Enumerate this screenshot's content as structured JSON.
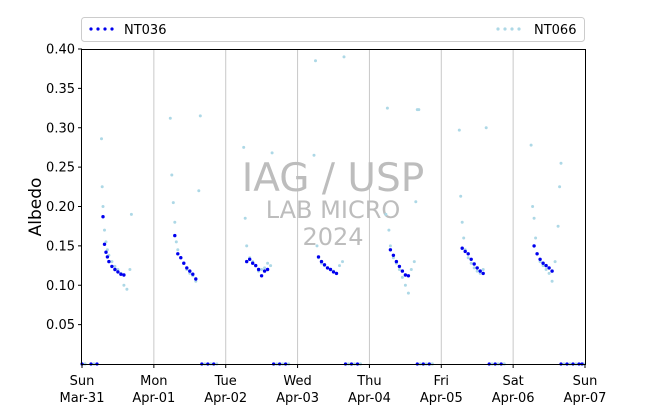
{
  "chart_data": {
    "type": "scatter",
    "ylabel": "Albedo",
    "xlabel": "",
    "ylim": [
      0.0,
      0.4
    ],
    "yticks": [
      "0.05",
      "0.10",
      "0.15",
      "0.20",
      "0.25",
      "0.30",
      "0.35",
      "0.40"
    ],
    "xlim": [
      "2024-03-31",
      "2024-04-07"
    ],
    "xticks": [
      {
        "day": "Sun",
        "date": "Mar-31"
      },
      {
        "day": "Mon",
        "date": "Apr-01"
      },
      {
        "day": "Tue",
        "date": "Apr-02"
      },
      {
        "day": "Wed",
        "date": "Apr-03"
      },
      {
        "day": "Thu",
        "date": "Apr-04"
      },
      {
        "day": "Fri",
        "date": "Apr-05"
      },
      {
        "day": "Sat",
        "date": "Apr-06"
      },
      {
        "day": "Sun",
        "date": "Apr-07"
      }
    ],
    "grid": "vertical",
    "legend_position": "top",
    "watermark": [
      "IAG / USP",
      "LAB MICRO",
      "2024"
    ],
    "series": [
      {
        "name": "NT036",
        "color": "#0000ee",
        "marker": "dot",
        "points": [
          [
            "2024-03-31T07:00",
            0.187
          ],
          [
            "2024-03-31T07:30",
            0.152
          ],
          [
            "2024-03-31T08:00",
            0.142
          ],
          [
            "2024-03-31T08:30",
            0.136
          ],
          [
            "2024-03-31T09:00",
            0.13
          ],
          [
            "2024-03-31T10:00",
            0.124
          ],
          [
            "2024-03-31T11:00",
            0.12
          ],
          [
            "2024-03-31T12:00",
            0.117
          ],
          [
            "2024-03-31T13:00",
            0.114
          ],
          [
            "2024-03-31T14:00",
            0.113
          ],
          [
            "2024-04-01T07:00",
            0.163
          ],
          [
            "2024-04-01T08:00",
            0.14
          ],
          [
            "2024-04-01T09:00",
            0.135
          ],
          [
            "2024-04-01T10:00",
            0.128
          ],
          [
            "2024-04-01T11:00",
            0.122
          ],
          [
            "2024-04-01T12:00",
            0.118
          ],
          [
            "2024-04-01T13:00",
            0.114
          ],
          [
            "2024-04-01T14:00",
            0.108
          ],
          [
            "2024-04-02T07:00",
            0.13
          ],
          [
            "2024-04-02T08:00",
            0.133
          ],
          [
            "2024-04-02T09:00",
            0.128
          ],
          [
            "2024-04-02T10:00",
            0.125
          ],
          [
            "2024-04-02T11:00",
            0.12
          ],
          [
            "2024-04-02T12:00",
            0.112
          ],
          [
            "2024-04-02T13:00",
            0.118
          ],
          [
            "2024-04-02T14:00",
            0.12
          ],
          [
            "2024-04-03T07:00",
            0.136
          ],
          [
            "2024-04-03T08:00",
            0.13
          ],
          [
            "2024-04-03T09:00",
            0.126
          ],
          [
            "2024-04-03T10:00",
            0.122
          ],
          [
            "2024-04-03T11:00",
            0.12
          ],
          [
            "2024-04-03T12:00",
            0.117
          ],
          [
            "2024-04-03T13:00",
            0.115
          ],
          [
            "2024-04-04T07:00",
            0.145
          ],
          [
            "2024-04-04T08:00",
            0.138
          ],
          [
            "2024-04-04T09:00",
            0.13
          ],
          [
            "2024-04-04T10:00",
            0.124
          ],
          [
            "2024-04-04T11:00",
            0.118
          ],
          [
            "2024-04-04T12:00",
            0.113
          ],
          [
            "2024-04-04T13:00",
            0.112
          ],
          [
            "2024-04-05T07:00",
            0.147
          ],
          [
            "2024-04-05T08:00",
            0.143
          ],
          [
            "2024-04-05T09:00",
            0.14
          ],
          [
            "2024-04-05T10:00",
            0.133
          ],
          [
            "2024-04-05T11:00",
            0.127
          ],
          [
            "2024-04-05T12:00",
            0.122
          ],
          [
            "2024-04-05T13:00",
            0.118
          ],
          [
            "2024-04-05T14:00",
            0.115
          ],
          [
            "2024-04-06T07:00",
            0.15
          ],
          [
            "2024-04-06T08:00",
            0.14
          ],
          [
            "2024-04-06T09:00",
            0.133
          ],
          [
            "2024-04-06T10:00",
            0.128
          ],
          [
            "2024-04-06T11:00",
            0.125
          ],
          [
            "2024-04-06T12:00",
            0.122
          ],
          [
            "2024-04-06T13:00",
            0.118
          ]
        ],
        "baseline": [
          [
            "2024-03-31T00:00",
            0.0
          ],
          [
            "2024-03-31T03:00",
            0.0
          ],
          [
            "2024-03-31T05:00",
            0.0
          ],
          [
            "2024-04-01T16:00",
            0.0
          ],
          [
            "2024-04-01T18:00",
            0.0
          ],
          [
            "2024-04-01T20:00",
            0.0
          ],
          [
            "2024-04-02T16:00",
            0.0
          ],
          [
            "2024-04-02T18:00",
            0.0
          ],
          [
            "2024-04-02T20:00",
            0.0
          ],
          [
            "2024-04-03T16:00",
            0.0
          ],
          [
            "2024-04-03T18:00",
            0.0
          ],
          [
            "2024-04-03T20:00",
            0.0
          ],
          [
            "2024-04-04T16:00",
            0.0
          ],
          [
            "2024-04-04T18:00",
            0.0
          ],
          [
            "2024-04-04T20:00",
            0.0
          ],
          [
            "2024-04-05T16:00",
            0.0
          ],
          [
            "2024-04-05T18:00",
            0.0
          ],
          [
            "2024-04-05T20:00",
            0.0
          ],
          [
            "2024-04-06T16:00",
            0.0
          ],
          [
            "2024-04-06T18:00",
            0.0
          ],
          [
            "2024-04-06T20:00",
            0.0
          ],
          [
            "2024-04-06T22:00",
            0.0
          ],
          [
            "2024-04-06T23:00",
            0.0
          ]
        ]
      },
      {
        "name": "NT066",
        "color": "#add8e6",
        "marker": "dot",
        "points": [
          [
            "2024-03-31T06:30",
            0.286
          ],
          [
            "2024-03-31T06:45",
            0.225
          ],
          [
            "2024-03-31T07:00",
            0.2
          ],
          [
            "2024-03-31T07:30",
            0.17
          ],
          [
            "2024-03-31T08:00",
            0.155
          ],
          [
            "2024-03-31T08:30",
            0.145
          ],
          [
            "2024-03-31T09:00",
            0.138
          ],
          [
            "2024-03-31T10:00",
            0.13
          ],
          [
            "2024-03-31T11:00",
            0.124
          ],
          [
            "2024-03-31T12:00",
            0.12
          ],
          [
            "2024-03-31T13:00",
            0.115
          ],
          [
            "2024-03-31T14:00",
            0.1
          ],
          [
            "2024-03-31T15:00",
            0.095
          ],
          [
            "2024-03-31T16:00",
            0.12
          ],
          [
            "2024-03-31T16:30",
            0.19
          ],
          [
            "2024-04-01T05:30",
            0.312
          ],
          [
            "2024-04-01T06:00",
            0.24
          ],
          [
            "2024-04-01T06:30",
            0.205
          ],
          [
            "2024-04-01T07:00",
            0.18
          ],
          [
            "2024-04-01T07:30",
            0.155
          ],
          [
            "2024-04-01T08:00",
            0.145
          ],
          [
            "2024-04-01T09:00",
            0.135
          ],
          [
            "2024-04-01T10:00",
            0.128
          ],
          [
            "2024-04-01T11:00",
            0.12
          ],
          [
            "2024-04-01T12:00",
            0.115
          ],
          [
            "2024-04-01T13:00",
            0.112
          ],
          [
            "2024-04-01T14:00",
            0.105
          ],
          [
            "2024-04-01T15:00",
            0.22
          ],
          [
            "2024-04-01T15:30",
            0.315
          ],
          [
            "2024-04-02T06:00",
            0.275
          ],
          [
            "2024-04-02T06:30",
            0.185
          ],
          [
            "2024-04-02T07:00",
            0.15
          ],
          [
            "2024-04-02T08:00",
            0.135
          ],
          [
            "2024-04-02T09:00",
            0.13
          ],
          [
            "2024-04-02T10:00",
            0.125
          ],
          [
            "2024-04-02T11:00",
            0.118
          ],
          [
            "2024-04-02T12:00",
            0.12
          ],
          [
            "2024-04-02T13:00",
            0.122
          ],
          [
            "2024-04-02T14:00",
            0.128
          ],
          [
            "2024-04-02T15:00",
            0.125
          ],
          [
            "2024-04-02T15:30",
            0.268
          ],
          [
            "2024-04-03T05:30",
            0.265
          ],
          [
            "2024-04-03T06:00",
            0.385
          ],
          [
            "2024-04-03T06:30",
            0.15
          ],
          [
            "2024-04-03T07:00",
            0.135
          ],
          [
            "2024-04-03T08:00",
            0.128
          ],
          [
            "2024-04-03T09:00",
            0.125
          ],
          [
            "2024-04-03T10:00",
            0.122
          ],
          [
            "2024-04-03T11:00",
            0.12
          ],
          [
            "2024-04-03T12:00",
            0.118
          ],
          [
            "2024-04-03T13:00",
            0.115
          ],
          [
            "2024-04-03T14:00",
            0.125
          ],
          [
            "2024-04-03T15:00",
            0.13
          ],
          [
            "2024-04-03T15:30",
            0.39
          ],
          [
            "2024-04-04T05:30",
            0.19
          ],
          [
            "2024-04-04T06:00",
            0.325
          ],
          [
            "2024-04-04T06:30",
            0.17
          ],
          [
            "2024-04-04T07:00",
            0.15
          ],
          [
            "2024-04-04T08:00",
            0.135
          ],
          [
            "2024-04-04T09:00",
            0.128
          ],
          [
            "2024-04-04T10:00",
            0.12
          ],
          [
            "2024-04-04T11:00",
            0.11
          ],
          [
            "2024-04-04T12:00",
            0.1
          ],
          [
            "2024-04-04T13:00",
            0.09
          ],
          [
            "2024-04-04T14:00",
            0.12
          ],
          [
            "2024-04-04T15:00",
            0.13
          ],
          [
            "2024-04-04T15:30",
            0.206
          ],
          [
            "2024-04-04T16:00",
            0.323
          ],
          [
            "2024-04-04T16:30",
            0.323
          ],
          [
            "2024-04-05T06:00",
            0.297
          ],
          [
            "2024-04-05T06:30",
            0.213
          ],
          [
            "2024-04-05T07:00",
            0.18
          ],
          [
            "2024-04-05T07:30",
            0.16
          ],
          [
            "2024-04-05T08:00",
            0.145
          ],
          [
            "2024-04-05T09:00",
            0.135
          ],
          [
            "2024-04-05T10:00",
            0.128
          ],
          [
            "2024-04-05T11:00",
            0.122
          ],
          [
            "2024-04-05T12:00",
            0.118
          ],
          [
            "2024-04-05T13:00",
            0.115
          ],
          [
            "2024-04-05T14:00",
            0.12
          ],
          [
            "2024-04-05T15:00",
            0.3
          ],
          [
            "2024-04-06T06:00",
            0.278
          ],
          [
            "2024-04-06T06:30",
            0.2
          ],
          [
            "2024-04-06T07:00",
            0.185
          ],
          [
            "2024-04-06T07:30",
            0.16
          ],
          [
            "2024-04-06T08:00",
            0.14
          ],
          [
            "2024-04-06T09:00",
            0.13
          ],
          [
            "2024-04-06T10:00",
            0.125
          ],
          [
            "2024-04-06T11:00",
            0.12
          ],
          [
            "2024-04-06T12:00",
            0.115
          ],
          [
            "2024-04-06T13:00",
            0.105
          ],
          [
            "2024-04-06T14:00",
            0.13
          ],
          [
            "2024-04-06T15:00",
            0.175
          ],
          [
            "2024-04-06T15:30",
            0.225
          ],
          [
            "2024-04-06T16:00",
            0.255
          ]
        ],
        "baseline": [
          [
            "2024-03-31T01:00",
            0.0
          ],
          [
            "2024-03-31T04:00",
            0.0
          ],
          [
            "2024-04-01T17:00",
            0.0
          ],
          [
            "2024-04-01T19:00",
            0.0
          ],
          [
            "2024-04-01T21:00",
            0.0
          ],
          [
            "2024-04-02T17:00",
            0.0
          ],
          [
            "2024-04-02T19:00",
            0.0
          ],
          [
            "2024-04-02T21:00",
            0.0
          ],
          [
            "2024-04-03T17:00",
            0.0
          ],
          [
            "2024-04-03T19:00",
            0.0
          ],
          [
            "2024-04-03T21:00",
            0.0
          ],
          [
            "2024-04-04T17:00",
            0.0
          ],
          [
            "2024-04-04T19:00",
            0.0
          ],
          [
            "2024-04-04T21:00",
            0.0
          ],
          [
            "2024-04-05T17:00",
            0.0
          ],
          [
            "2024-04-05T19:00",
            0.0
          ],
          [
            "2024-04-05T21:00",
            0.0
          ],
          [
            "2024-04-06T17:00",
            0.0
          ],
          [
            "2024-04-06T19:00",
            0.0
          ],
          [
            "2024-04-06T21:00",
            0.0
          ],
          [
            "2024-04-06T23:30",
            0.0
          ]
        ]
      }
    ]
  }
}
